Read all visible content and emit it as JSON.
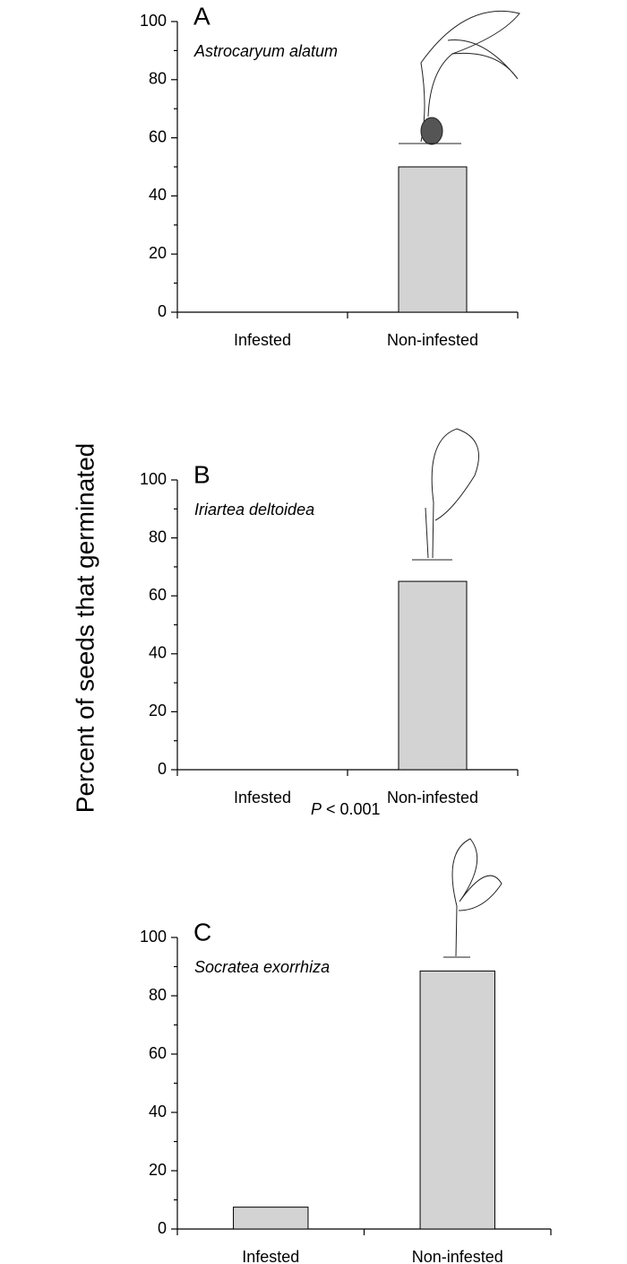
{
  "chart_data": [
    {
      "type": "bar",
      "title": "A",
      "subtitle": "Astrocaryum alatum",
      "categories": [
        "Infested",
        "Non-infested"
      ],
      "values": [
        0,
        50
      ],
      "color": "#d3d3d3",
      "ylim": [
        0,
        100
      ],
      "yticks": [
        0,
        20,
        40,
        60,
        80,
        100
      ],
      "yminorticks": [
        10,
        30,
        50,
        70,
        90
      ]
    },
    {
      "type": "bar",
      "title": "B",
      "subtitle": "Iriartea deltoidea",
      "ylabel": "Percent of seeds that germinated",
      "categories": [
        "Infested",
        "Non-infested"
      ],
      "values": [
        0,
        65
      ],
      "color": "#d3d3d3",
      "ylim": [
        0,
        100
      ],
      "yticks": [
        0,
        20,
        40,
        60,
        80,
        100
      ],
      "yminorticks": [
        10,
        30,
        50,
        70,
        90
      ]
    },
    {
      "type": "bar",
      "title": "C",
      "subtitle": "Socratea exorrhiza",
      "annotation": [
        "P",
        "< 0.001"
      ],
      "categories": [
        "Infested",
        "Non-infested"
      ],
      "values": [
        7.5,
        88.5
      ],
      "color": "#d3d3d3",
      "ylim": [
        0,
        100
      ],
      "yticks": [
        0,
        20,
        40,
        60,
        80,
        100
      ],
      "yminorticks": [
        10,
        30,
        50,
        70,
        90
      ]
    }
  ]
}
